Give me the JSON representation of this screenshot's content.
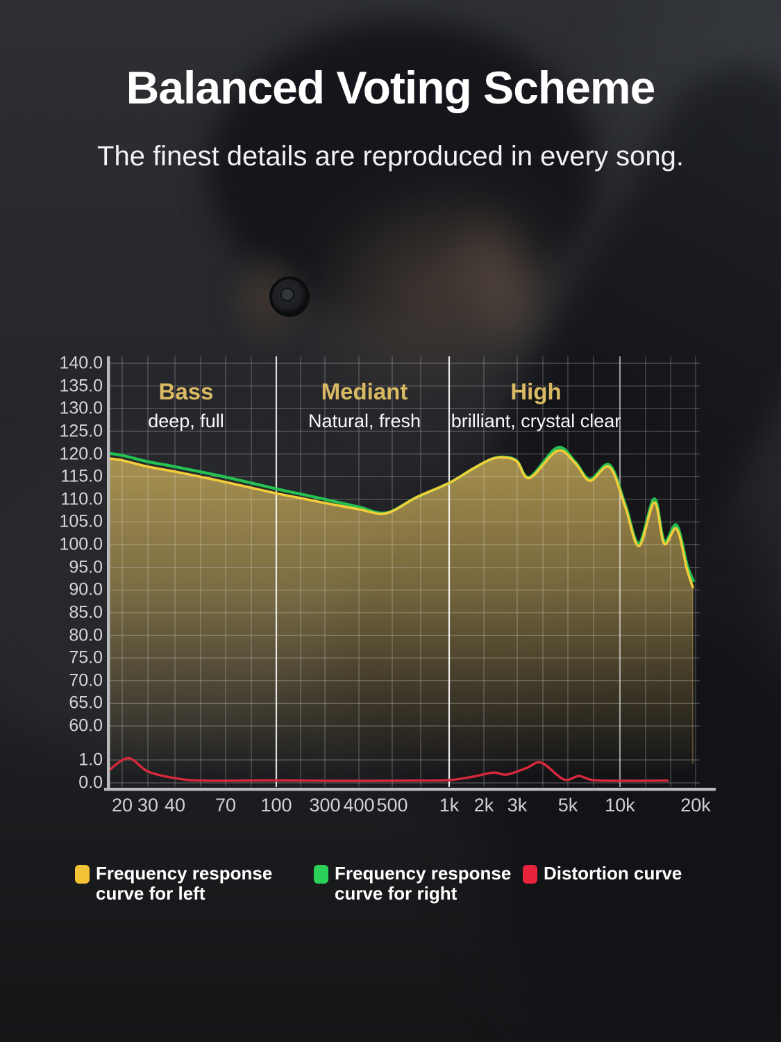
{
  "header": {
    "title": "Balanced Voting Scheme",
    "subtitle": "The finest details are reproduced in every song."
  },
  "chart_data": {
    "type": "area",
    "x_axis": "frequency (Hz), log-style scale",
    "y_axis_top": "frequency response (dB), 60.0 - 140.0 in 5 dB steps",
    "y_axis_bottom": "distortion scale, 0.0 - 1.0",
    "grid": "on",
    "bands": [
      {
        "label": "Bass",
        "desc": "deep, full"
      },
      {
        "label": "Mediant",
        "desc": "Natural, fresh"
      },
      {
        "label": "High",
        "desc": "brilliant, crystal clear"
      }
    ],
    "x_ticks": [
      "20",
      "30",
      "40",
      "70",
      "100",
      "300",
      "400",
      "500",
      "1k",
      "2k",
      "3k",
      "5k",
      "10k",
      "20k"
    ],
    "y_ticks": [
      "140.0",
      "135.0",
      "130.0",
      "125.0",
      "120.0",
      "115.0",
      "110.0",
      "105.0",
      "100.0",
      "95.0",
      "90.0",
      "85.0",
      "80.0",
      "75.0",
      "70.0",
      "65.0",
      "60.0",
      "1.0",
      "0.0"
    ],
    "series": [
      {
        "name": "Frequency response curve for left",
        "axis": "db",
        "color": "#f3cd39",
        "points": [
          [
            16,
            119.0
          ],
          [
            20,
            118.6
          ],
          [
            30,
            117.2
          ],
          [
            40,
            116.1
          ],
          [
            70,
            113.8
          ],
          [
            100,
            111.3
          ],
          [
            170,
            110.3
          ],
          [
            300,
            109.2
          ],
          [
            400,
            107.8
          ],
          [
            480,
            106.9
          ],
          [
            670,
            110.4
          ],
          [
            1000,
            113.6
          ],
          [
            1600,
            116.7
          ],
          [
            2200,
            118.9
          ],
          [
            2600,
            119.2
          ],
          [
            3000,
            118.3
          ],
          [
            3400,
            114.7
          ],
          [
            4500,
            120.7
          ],
          [
            5500,
            118.0
          ],
          [
            6700,
            114.1
          ],
          [
            8700,
            117.1
          ],
          [
            10500,
            108.3
          ],
          [
            11900,
            99.7
          ],
          [
            13700,
            109.3
          ],
          [
            15000,
            100.2
          ],
          [
            16800,
            103.5
          ],
          [
            18500,
            94.5
          ],
          [
            19500,
            90.6
          ]
        ]
      },
      {
        "name": "Frequency response curve for right",
        "axis": "db",
        "color": "#25c152",
        "points": [
          [
            16,
            120.1
          ],
          [
            20,
            119.7
          ],
          [
            30,
            118.3
          ],
          [
            40,
            117.2
          ],
          [
            70,
            114.9
          ],
          [
            100,
            112.3
          ],
          [
            170,
            111.2
          ],
          [
            300,
            110.0
          ],
          [
            400,
            108.3
          ],
          [
            480,
            107.0
          ],
          [
            670,
            110.4
          ],
          [
            1000,
            113.6
          ],
          [
            1600,
            116.7
          ],
          [
            2200,
            118.9
          ],
          [
            2600,
            119.3
          ],
          [
            3000,
            118.4
          ],
          [
            3400,
            114.9
          ],
          [
            4500,
            121.4
          ],
          [
            5500,
            118.3
          ],
          [
            6700,
            114.4
          ],
          [
            8700,
            117.6
          ],
          [
            10500,
            108.8
          ],
          [
            11900,
            100.3
          ],
          [
            13700,
            110.1
          ],
          [
            15000,
            100.8
          ],
          [
            16800,
            104.3
          ],
          [
            18500,
            95.5
          ],
          [
            19600,
            92.0
          ]
        ]
      },
      {
        "name": "Distortion curve",
        "axis": "distortion",
        "color": "#d8293c",
        "points": [
          [
            16,
            0.55
          ],
          [
            22,
            1.08
          ],
          [
            30,
            0.5
          ],
          [
            40,
            0.21
          ],
          [
            55,
            0.1
          ],
          [
            100,
            0.11
          ],
          [
            360,
            0.09
          ],
          [
            670,
            0.1
          ],
          [
            1000,
            0.12
          ],
          [
            1600,
            0.27
          ],
          [
            2250,
            0.45
          ],
          [
            2640,
            0.36
          ],
          [
            3300,
            0.65
          ],
          [
            3830,
            0.88
          ],
          [
            4800,
            0.15
          ],
          [
            5800,
            0.3
          ],
          [
            7000,
            0.12
          ],
          [
            10500,
            0.09
          ],
          [
            15500,
            0.1
          ]
        ]
      }
    ],
    "fill": {
      "series": "Frequency response curve for left",
      "color_top": "rgba(209,180,92,0.8)",
      "color_bottom": "rgba(170,145,75,0)"
    }
  },
  "legend": {
    "items": [
      {
        "color": "#f2c335",
        "line1": "Frequency response",
        "line2": "curve for left"
      },
      {
        "color": "#2bd058",
        "line1": "Frequency response",
        "line2": "curve for right"
      },
      {
        "color": "#e8243c",
        "line1": "Distortion curve",
        "line2": ""
      }
    ]
  }
}
